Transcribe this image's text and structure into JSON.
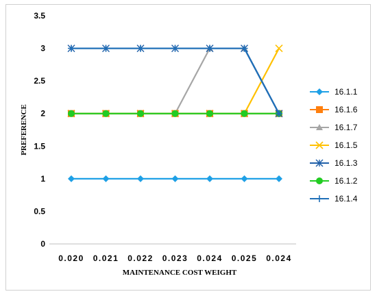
{
  "chart_data": {
    "type": "line",
    "title": "",
    "xlabel": "MAINTENANCE COST WEIGHT",
    "ylabel": "PREFERENCE",
    "categories": [
      "0.020",
      "0.021",
      "0.022",
      "0.023",
      "0.024",
      "0.025",
      "0.024"
    ],
    "ylim": [
      0,
      3.5
    ],
    "yticks": [
      "0",
      "0.5",
      "1",
      "1.5",
      "2",
      "2.5",
      "3",
      "3.5"
    ],
    "grid": false,
    "legend_position": "right",
    "series": [
      {
        "name": "16.1.1",
        "color": "#1ea0e6",
        "marker": "diamond",
        "values": [
          1,
          1,
          1,
          1,
          1,
          1,
          1
        ]
      },
      {
        "name": "16.1.6",
        "color": "#ff7f0e",
        "marker": "square",
        "values": [
          2,
          2,
          2,
          2,
          2,
          2,
          2
        ]
      },
      {
        "name": "16.1.7",
        "color": "#a6a6a6",
        "marker": "triangle",
        "values": [
          2,
          2,
          2,
          2,
          3,
          3,
          2
        ]
      },
      {
        "name": "16.1.5",
        "color": "#ffc000",
        "marker": "x",
        "values": [
          2,
          2,
          2,
          2,
          2,
          2,
          3
        ]
      },
      {
        "name": "16.1.3",
        "color": "#1f5fa8",
        "marker": "star",
        "values": [
          3,
          3,
          3,
          3,
          3,
          3,
          2
        ]
      },
      {
        "name": "16.1.2",
        "color": "#22cc22",
        "marker": "circle",
        "values": [
          2,
          2,
          2,
          2,
          2,
          2,
          2
        ]
      },
      {
        "name": "16.1.4",
        "color": "#1f6fb8",
        "marker": "plus",
        "values": [
          3,
          3,
          3,
          3,
          3,
          3,
          2
        ]
      }
    ]
  }
}
